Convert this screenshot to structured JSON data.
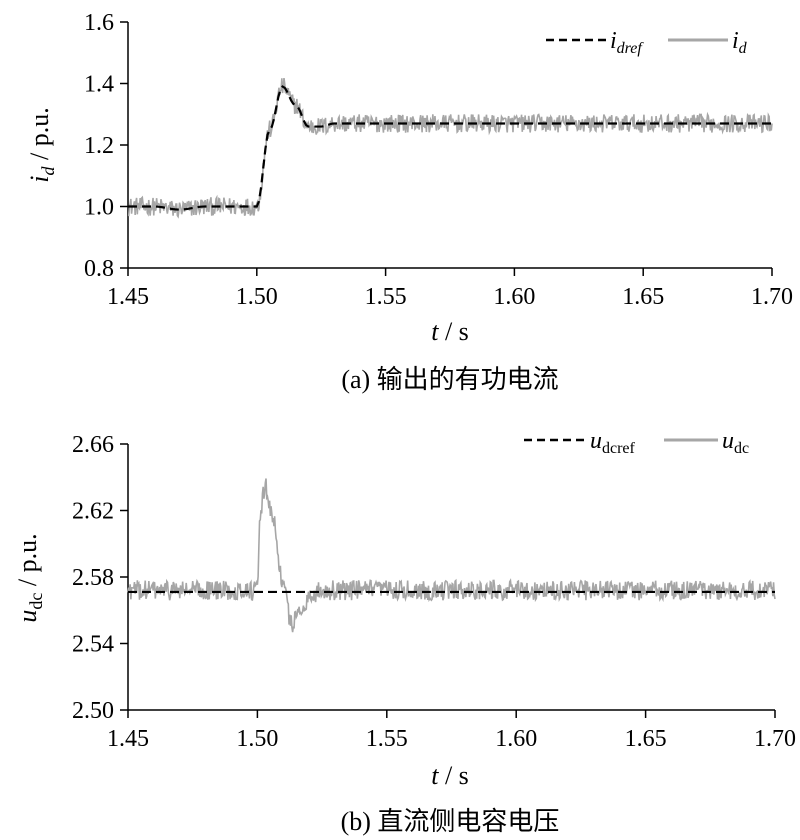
{
  "chart_data": [
    {
      "type": "line",
      "panel": "a",
      "caption": "(a)  输出的有功电流",
      "ylabel": {
        "main": "i",
        "sub": "d",
        "rest": " / p.u."
      },
      "xlabel": {
        "main": "t",
        "rest": " / s"
      },
      "xlim": [
        1.45,
        1.7
      ],
      "ylim": [
        0.8,
        1.6
      ],
      "xticks": [
        1.45,
        1.5,
        1.55,
        1.6,
        1.65,
        1.7
      ],
      "xtick_labels": [
        "1.45",
        "1.50",
        "1.55",
        "1.60",
        "1.65",
        "1.70"
      ],
      "yticks": [
        0.8,
        1.0,
        1.2,
        1.4,
        1.6
      ],
      "ytick_labels": [
        "0.8",
        "1.0",
        "1.2",
        "1.4",
        "1.6"
      ],
      "legend_position": "top-right",
      "series": [
        {
          "name": "idref",
          "label": {
            "main": "i",
            "sub": "dref"
          },
          "style": "dashed",
          "color": "#000000",
          "x": [
            1.45,
            1.46,
            1.47,
            1.48,
            1.49,
            1.5,
            1.505,
            1.51,
            1.515,
            1.52,
            1.525,
            1.53,
            1.54,
            1.55,
            1.6,
            1.65,
            1.7
          ],
          "y": [
            1.0,
            1.0,
            0.99,
            1.0,
            1.0,
            1.0,
            1.25,
            1.39,
            1.33,
            1.26,
            1.26,
            1.27,
            1.27,
            1.27,
            1.27,
            1.27,
            1.27
          ]
        },
        {
          "name": "id",
          "label": {
            "main": "i",
            "sub": "d"
          },
          "style": "solid-noisy",
          "color": "#a6a6a6",
          "noise_amplitude": 0.03,
          "x": [
            1.45,
            1.46,
            1.47,
            1.48,
            1.49,
            1.5,
            1.505,
            1.51,
            1.515,
            1.52,
            1.525,
            1.53,
            1.54,
            1.55,
            1.6,
            1.65,
            1.7
          ],
          "y": [
            1.0,
            1.0,
            0.99,
            1.0,
            1.0,
            1.0,
            1.25,
            1.39,
            1.33,
            1.26,
            1.26,
            1.27,
            1.27,
            1.27,
            1.27,
            1.27,
            1.27
          ]
        }
      ]
    },
    {
      "type": "line",
      "panel": "b",
      "caption": "(b)  直流侧电容电压",
      "ylabel": {
        "main": "u",
        "sub": "dc",
        "rest": " / p.u."
      },
      "xlabel": {
        "main": "t",
        "rest": " / s"
      },
      "xlim": [
        1.45,
        1.7
      ],
      "ylim": [
        2.5,
        2.66
      ],
      "xticks": [
        1.45,
        1.5,
        1.55,
        1.6,
        1.65,
        1.7
      ],
      "xtick_labels": [
        "1.45",
        "1.50",
        "1.55",
        "1.60",
        "1.65",
        "1.70"
      ],
      "yticks": [
        2.5,
        2.54,
        2.58,
        2.62,
        2.66
      ],
      "ytick_labels": [
        "2.50",
        "2.54",
        "2.58",
        "2.62",
        "2.66"
      ],
      "legend_position": "top-right",
      "series": [
        {
          "name": "udcref",
          "label": {
            "main": "u",
            "sub": "dcref"
          },
          "style": "dashed",
          "color": "#000000",
          "x": [
            1.45,
            1.7
          ],
          "y": [
            2.571,
            2.571
          ]
        },
        {
          "name": "udc",
          "label": {
            "main": "u",
            "sub": "dc"
          },
          "style": "solid-noisy",
          "color": "#a6a6a6",
          "noise_amplitude": 0.006,
          "x": [
            1.45,
            1.49,
            1.5,
            1.501,
            1.503,
            1.506,
            1.51,
            1.513,
            1.516,
            1.52,
            1.525,
            1.53,
            1.55,
            1.6,
            1.65,
            1.7
          ],
          "y": [
            2.572,
            2.572,
            2.572,
            2.615,
            2.635,
            2.615,
            2.575,
            2.552,
            2.558,
            2.568,
            2.572,
            2.572,
            2.572,
            2.572,
            2.572,
            2.572
          ]
        }
      ]
    }
  ]
}
